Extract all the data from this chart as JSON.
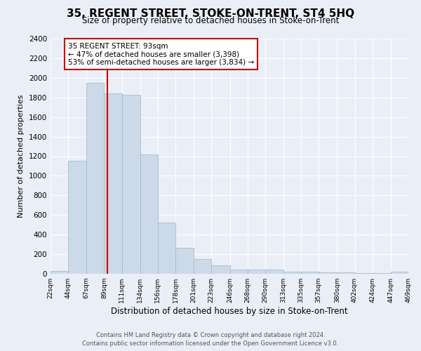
{
  "title": "35, REGENT STREET, STOKE-ON-TRENT, ST4 5HQ",
  "subtitle": "Size of property relative to detached houses in Stoke-on-Trent",
  "xlabel": "Distribution of detached houses by size in Stoke-on-Trent",
  "ylabel": "Number of detached properties",
  "bins": [
    22,
    44,
    67,
    89,
    111,
    134,
    156,
    178,
    201,
    223,
    246,
    268,
    290,
    313,
    335,
    357,
    380,
    402,
    424,
    447,
    469
  ],
  "counts": [
    30,
    1150,
    1950,
    1840,
    1830,
    1215,
    520,
    265,
    150,
    85,
    45,
    45,
    40,
    22,
    20,
    12,
    12,
    10,
    8,
    18
  ],
  "bar_color": "#ccd9e8",
  "bar_edgecolor": "#aabccc",
  "property_sqm": 93,
  "vline_color": "#cc0000",
  "annotation_text": "35 REGENT STREET: 93sqm\n← 47% of detached houses are smaller (3,398)\n53% of semi-detached houses are larger (3,834) →",
  "annotation_boxcolor": "white",
  "annotation_edgecolor": "#cc0000",
  "ylim": [
    0,
    2400
  ],
  "yticks": [
    0,
    200,
    400,
    600,
    800,
    1000,
    1200,
    1400,
    1600,
    1800,
    2000,
    2200,
    2400
  ],
  "footer_line1": "Contains HM Land Registry data © Crown copyright and database right 2024.",
  "footer_line2": "Contains public sector information licensed under the Open Government Licence v3.0.",
  "bg_color": "#eaeff7",
  "grid_color": "white"
}
